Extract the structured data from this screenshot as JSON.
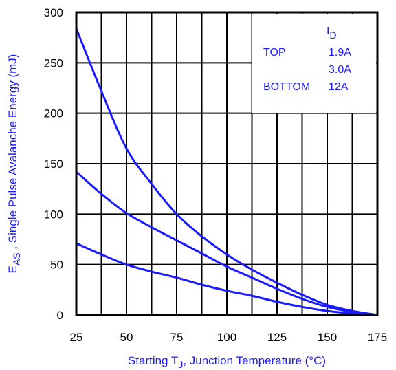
{
  "chart_data": {
    "type": "line",
    "xlabel": {
      "main": "Starting T",
      "sub": "J",
      "rest": ", Junction Temperature (°C)"
    },
    "ylabel": {
      "main": "E",
      "sub": "AS",
      "rest": " , Single Pulse Avalanche Energy (mJ)"
    },
    "xlim": [
      25,
      175
    ],
    "ylim": [
      0,
      300
    ],
    "xticks": [
      25,
      50,
      75,
      100,
      125,
      150,
      175
    ],
    "yticks": [
      0,
      50,
      100,
      150,
      200,
      250,
      300
    ],
    "x_minor_step": 12.5,
    "grid": true,
    "line_color": "#1a1aff",
    "legend": {
      "placement": "top-right",
      "header": {
        "main": "I",
        "sub": "D"
      },
      "rows": [
        {
          "label": "TOP",
          "value": "1.9A"
        },
        {
          "label": "",
          "value": "3.0A"
        },
        {
          "label": "BOTTOM",
          "value": "12A"
        }
      ]
    },
    "series": [
      {
        "x": [
          25,
          37.5,
          50,
          62.5,
          75,
          87.5,
          100,
          112.5,
          125,
          137.5,
          150,
          162.5,
          175
        ],
        "y": [
          284,
          222,
          165,
          130,
          100,
          78,
          60,
          45,
          32,
          20,
          10,
          4,
          0
        ]
      },
      {
        "x": [
          25,
          37.5,
          50,
          62.5,
          75,
          87.5,
          100,
          112.5,
          125,
          137.5,
          150,
          162.5,
          175
        ],
        "y": [
          142,
          120,
          101,
          87,
          74,
          61,
          48,
          37,
          26,
          16,
          8,
          3,
          0
        ]
      },
      {
        "x": [
          25,
          37.5,
          50,
          62.5,
          75,
          87.5,
          100,
          112.5,
          125,
          137.5,
          150,
          162.5,
          175
        ],
        "y": [
          71,
          60,
          50,
          43,
          37,
          30,
          24,
          19,
          13,
          8,
          4,
          1.5,
          0
        ]
      }
    ]
  }
}
